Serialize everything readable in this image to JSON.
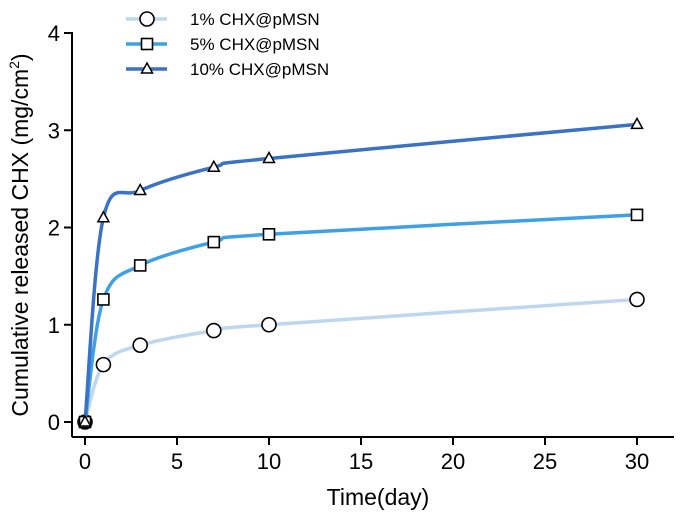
{
  "chart_data": {
    "type": "line",
    "title": "",
    "xlabel": "Time(day)",
    "ylabel": "Cumulative released CHX (mg/cm",
    "ylabel_sup": "2",
    "ylabel_end": ")",
    "xlim": [
      0,
      30
    ],
    "ylim": [
      0,
      4
    ],
    "xticks": [
      "0",
      "5",
      "10",
      "15",
      "20",
      "25",
      "30"
    ],
    "yticks": [
      "0",
      "1",
      "2",
      "3",
      "4"
    ],
    "grid": false,
    "legend_position": "top-left",
    "x": [
      0,
      1,
      3,
      7,
      10,
      30
    ],
    "series": [
      {
        "name": "1% CHX@pMSN",
        "marker": "circle",
        "color": "#bcd7ef",
        "values": [
          0,
          0.59,
          0.79,
          0.94,
          1.0,
          1.26
        ]
      },
      {
        "name": "5% CHX@pMSN",
        "marker": "square",
        "color": "#3fa0e6",
        "values": [
          0,
          1.26,
          1.61,
          1.85,
          1.93,
          2.13
        ]
      },
      {
        "name": "10% CHX@pMSN",
        "marker": "triangle",
        "color": "#3a72c4",
        "values": [
          0,
          2.1,
          2.38,
          2.62,
          2.71,
          3.06
        ]
      }
    ]
  }
}
